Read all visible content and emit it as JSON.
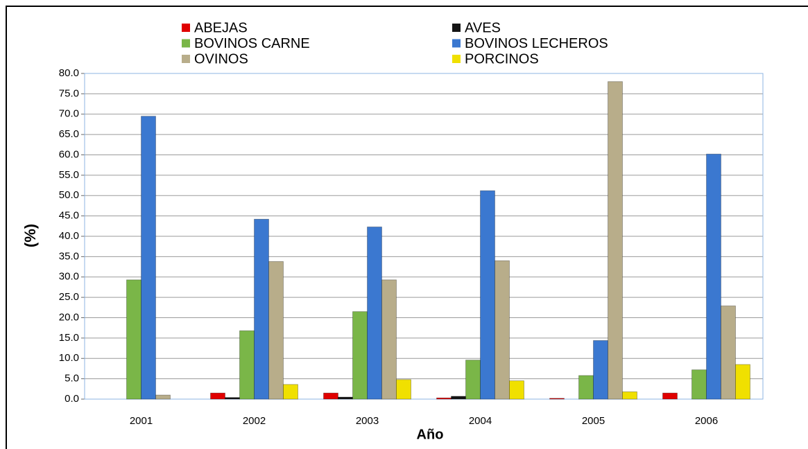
{
  "chart_data": {
    "type": "bar",
    "x_label": "Año",
    "y_label": "(%)",
    "categories": [
      "2001",
      "2002",
      "2003",
      "2004",
      "2005",
      "2006"
    ],
    "series": [
      {
        "name": "ABEJAS",
        "color": "#e00000",
        "values": [
          0,
          1.5,
          1.5,
          0.3,
          0.2,
          1.5
        ]
      },
      {
        "name": "AVES",
        "color": "#151515",
        "values": [
          0,
          0.4,
          0.5,
          0.7,
          0,
          0
        ]
      },
      {
        "name": "BOVINOS CARNE",
        "color": "#7ab648",
        "values": [
          29.3,
          16.8,
          21.5,
          9.6,
          5.8,
          7.2
        ]
      },
      {
        "name": "BOVINOS LECHEROS",
        "color": "#3b78d0",
        "values": [
          69.5,
          44.2,
          42.3,
          51.2,
          14.4,
          60.2
        ]
      },
      {
        "name": "OVINOS",
        "color": "#b8ad8a",
        "values": [
          1.0,
          33.8,
          29.3,
          34.0,
          78.0,
          22.9
        ]
      },
      {
        "name": "PORCINOS",
        "color": "#f0e000",
        "values": [
          0,
          3.6,
          4.8,
          4.5,
          1.8,
          8.5
        ]
      }
    ],
    "ylim": [
      0,
      80
    ],
    "yticks": [
      {
        "value": 0,
        "label": "0.0"
      },
      {
        "value": 5,
        "label": "5.0"
      },
      {
        "value": 10,
        "label": "10.0"
      },
      {
        "value": 15,
        "label": "15.0"
      },
      {
        "value": 20,
        "label": "20.0"
      },
      {
        "value": 25,
        "label": "25.0"
      },
      {
        "value": 30,
        "label": "30.0"
      },
      {
        "value": 35,
        "label": "35.0"
      },
      {
        "value": 40,
        "label": "40.0"
      },
      {
        "value": 45,
        "label": "45.0"
      },
      {
        "value": 50,
        "label": "50.0"
      },
      {
        "value": 55,
        "label": "55.0"
      },
      {
        "value": 60,
        "label": "60.0"
      },
      {
        "value": 65,
        "label": "65.0"
      },
      {
        "value": 70,
        "label": "70.0"
      },
      {
        "value": 75,
        "label": "75.0"
      },
      {
        "value": 80,
        "label": "80.0"
      }
    ],
    "grid": true,
    "legend": "top"
  }
}
